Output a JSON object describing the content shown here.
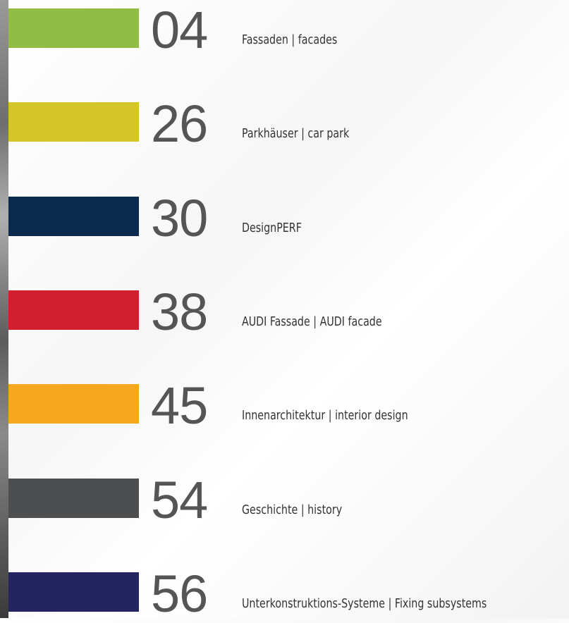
{
  "entries": [
    {
      "number": "04",
      "label": "Fassaden | facades",
      "color": "#8fbd45"
    },
    {
      "number": "26",
      "label": "Parkhäuser | car park",
      "color": "#d4c52a"
    },
    {
      "number": "30",
      "label": "DesignPERF",
      "color": "#0c2a4e"
    },
    {
      "number": "38",
      "label": "AUDI Fassade | AUDI facade",
      "color": "#d21f2e"
    },
    {
      "number": "45",
      "label": "Innenarchitektur | interior design",
      "color": "#f7a81f"
    },
    {
      "number": "54",
      "label": "Geschichte | history",
      "color": "#4d4e50"
    },
    {
      "number": "56",
      "label": "Unterkonstruktions-Systeme | Fixing subsystems",
      "color": "#232460"
    }
  ]
}
